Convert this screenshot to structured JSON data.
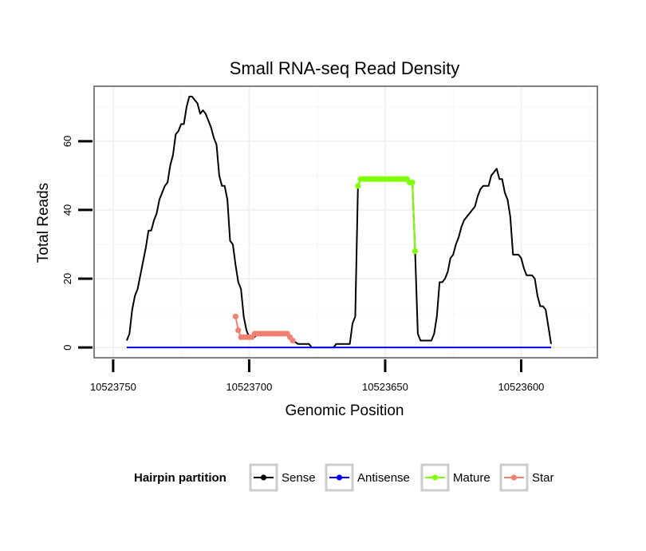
{
  "chart_data": {
    "type": "line",
    "title": "Small RNA-seq Read Density",
    "xlabel": "Genomic Position",
    "ylabel": "Total Reads",
    "x_reversed": true,
    "xlim": [
      10523757,
      10523572
    ],
    "ylim": [
      -3,
      76
    ],
    "x_ticks": [
      10523750,
      10523700,
      10523650,
      10523600
    ],
    "x_tick_labels": [
      "10523750",
      "10523700",
      "10523650",
      "10523600"
    ],
    "y_ticks": [
      0,
      20,
      40,
      60
    ],
    "y_tick_labels": [
      "0",
      "20",
      "40",
      "60"
    ],
    "grid": true,
    "legend_position": "bottom",
    "legend": {
      "title": "Hairpin partition",
      "entries": [
        {
          "label": "Sense",
          "color": "#000000"
        },
        {
          "label": "Antisense",
          "color": "#0000ff"
        },
        {
          "label": "Mature",
          "color": "#7fff00"
        },
        {
          "label": "Star",
          "color": "#f08070"
        }
      ]
    },
    "series": [
      {
        "name": "Sense",
        "color": "#000000",
        "points": [
          [
            10523745,
            2
          ],
          [
            10523744,
            4
          ],
          [
            10523743,
            11
          ],
          [
            10523742,
            15
          ],
          [
            10523741,
            17
          ],
          [
            10523740,
            21
          ],
          [
            10523739,
            25
          ],
          [
            10523738,
            29
          ],
          [
            10523737,
            34
          ],
          [
            10523736,
            34
          ],
          [
            10523735,
            37
          ],
          [
            10523734,
            39
          ],
          [
            10523733,
            43
          ],
          [
            10523732,
            45
          ],
          [
            10523731,
            47
          ],
          [
            10523730,
            48
          ],
          [
            10523729,
            53
          ],
          [
            10523728,
            56
          ],
          [
            10523727,
            62
          ],
          [
            10523726,
            63
          ],
          [
            10523725,
            65
          ],
          [
            10523724,
            65
          ],
          [
            10523723,
            70
          ],
          [
            10523722,
            73
          ],
          [
            10523721,
            73
          ],
          [
            10523720,
            72
          ],
          [
            10523719,
            71
          ],
          [
            10523718,
            68
          ],
          [
            10523717,
            69
          ],
          [
            10523716,
            68
          ],
          [
            10523715,
            66
          ],
          [
            10523714,
            64
          ],
          [
            10523713,
            61
          ],
          [
            10523712,
            59
          ],
          [
            10523711,
            50
          ],
          [
            10523710,
            47
          ],
          [
            10523709,
            47
          ],
          [
            10523708,
            43
          ],
          [
            10523707,
            31
          ],
          [
            10523706,
            30
          ],
          [
            10523705,
            24
          ],
          [
            10523704,
            19
          ],
          [
            10523703,
            17
          ],
          [
            10523702,
            9
          ],
          [
            10523701,
            5
          ],
          [
            10523700,
            3
          ],
          [
            10523699,
            3
          ],
          [
            10523698,
            3
          ],
          [
            10523697,
            4
          ],
          [
            10523696,
            4
          ],
          [
            10523694,
            4
          ],
          [
            10523692,
            4
          ],
          [
            10523690,
            4
          ],
          [
            10523688,
            4
          ],
          [
            10523686,
            4
          ],
          [
            10523685,
            3
          ],
          [
            10523684,
            2
          ],
          [
            10523682,
            1
          ],
          [
            10523680,
            1
          ],
          [
            10523678,
            1
          ],
          [
            10523677,
            0
          ],
          [
            10523674,
            0
          ],
          [
            10523671,
            0
          ],
          [
            10523669,
            0
          ],
          [
            10523668,
            1
          ],
          [
            10523665,
            1
          ],
          [
            10523663,
            1
          ],
          [
            10523662,
            7
          ],
          [
            10523661,
            9
          ],
          [
            10523660,
            47
          ],
          [
            10523659,
            49
          ],
          [
            10523650,
            49
          ],
          [
            10523642,
            49
          ],
          [
            10523641,
            48
          ],
          [
            10523640,
            48
          ],
          [
            10523639,
            28
          ],
          [
            10523638,
            4
          ],
          [
            10523637,
            2
          ],
          [
            10523636,
            2
          ],
          [
            10523634,
            2
          ],
          [
            10523633,
            2
          ],
          [
            10523632,
            4
          ],
          [
            10523631,
            9
          ],
          [
            10523630,
            19
          ],
          [
            10523629,
            19
          ],
          [
            10523628,
            20
          ],
          [
            10523627,
            22
          ],
          [
            10523626,
            26
          ],
          [
            10523625,
            27
          ],
          [
            10523624,
            30
          ],
          [
            10523623,
            32
          ],
          [
            10523622,
            35
          ],
          [
            10523621,
            37
          ],
          [
            10523620,
            38
          ],
          [
            10523619,
            39
          ],
          [
            10523618,
            40
          ],
          [
            10523617,
            41
          ],
          [
            10523616,
            44
          ],
          [
            10523615,
            46
          ],
          [
            10523614,
            47
          ],
          [
            10523613,
            47
          ],
          [
            10523612,
            47
          ],
          [
            10523611,
            50
          ],
          [
            10523610,
            51
          ],
          [
            10523609,
            52
          ],
          [
            10523608,
            49
          ],
          [
            10523607,
            49
          ],
          [
            10523606,
            45
          ],
          [
            10523605,
            43
          ],
          [
            10523604,
            38
          ],
          [
            10523603,
            27
          ],
          [
            10523602,
            27
          ],
          [
            10523601,
            27
          ],
          [
            10523600,
            26
          ],
          [
            10523599,
            23
          ],
          [
            10523598,
            21
          ],
          [
            10523597,
            21
          ],
          [
            10523596,
            21
          ],
          [
            10523595,
            20
          ],
          [
            10523594,
            15
          ],
          [
            10523593,
            12
          ],
          [
            10523592,
            12
          ],
          [
            10523591,
            11
          ],
          [
            10523590,
            6
          ],
          [
            10523589,
            1
          ]
        ]
      },
      {
        "name": "Antisense",
        "color": "#0000ff",
        "points": [
          [
            10523745,
            0
          ],
          [
            10523589,
            0
          ]
        ]
      },
      {
        "name": "Mature",
        "color": "#7fff00",
        "points": [
          [
            10523660,
            47
          ],
          [
            10523659,
            49
          ],
          [
            10523658,
            49
          ],
          [
            10523657,
            49
          ],
          [
            10523656,
            49
          ],
          [
            10523655,
            49
          ],
          [
            10523654,
            49
          ],
          [
            10523653,
            49
          ],
          [
            10523652,
            49
          ],
          [
            10523651,
            49
          ],
          [
            10523650,
            49
          ],
          [
            10523649,
            49
          ],
          [
            10523648,
            49
          ],
          [
            10523647,
            49
          ],
          [
            10523646,
            49
          ],
          [
            10523645,
            49
          ],
          [
            10523644,
            49
          ],
          [
            10523643,
            49
          ],
          [
            10523642,
            49
          ],
          [
            10523641,
            48
          ],
          [
            10523640,
            48
          ],
          [
            10523639,
            28
          ]
        ]
      },
      {
        "name": "Star",
        "color": "#f08070",
        "points": [
          [
            10523705,
            9
          ],
          [
            10523704,
            5
          ],
          [
            10523703,
            3
          ],
          [
            10523702,
            3
          ],
          [
            10523701,
            3
          ],
          [
            10523700,
            3
          ],
          [
            10523699,
            3
          ],
          [
            10523698,
            4
          ],
          [
            10523697,
            4
          ],
          [
            10523696,
            4
          ],
          [
            10523695,
            4
          ],
          [
            10523694,
            4
          ],
          [
            10523693,
            4
          ],
          [
            10523692,
            4
          ],
          [
            10523691,
            4
          ],
          [
            10523690,
            4
          ],
          [
            10523689,
            4
          ],
          [
            10523688,
            4
          ],
          [
            10523687,
            4
          ],
          [
            10523686,
            4
          ],
          [
            10523685,
            3
          ],
          [
            10523684,
            2
          ]
        ]
      }
    ]
  }
}
